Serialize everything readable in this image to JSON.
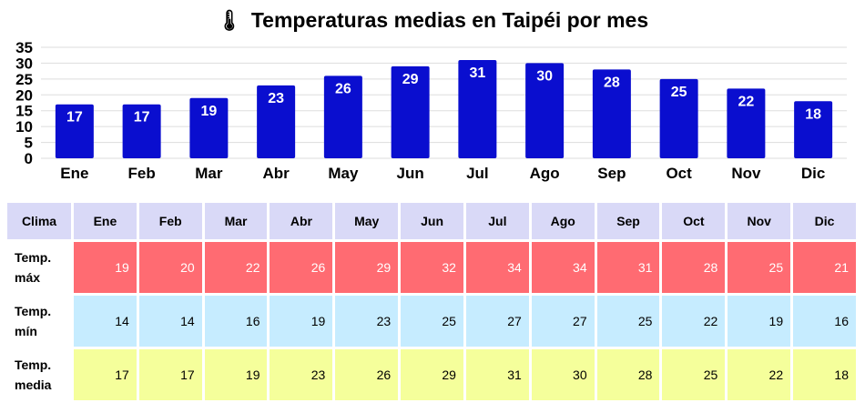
{
  "title_icon": "thermometer-icon",
  "title": "Temperaturas medias en Taipéi por mes",
  "colors": {
    "bar": "#0a0ecf",
    "grid": "#dddddd",
    "header": "#d9d9f7",
    "max_row": "#ff6b72",
    "min_row": "#c6ecff",
    "mean_row": "#f5ff9b"
  },
  "chart_data": {
    "type": "bar",
    "title": "Temperaturas medias en Taipéi por mes",
    "categories": [
      "Ene",
      "Feb",
      "Mar",
      "Abr",
      "May",
      "Jun",
      "Jul",
      "Ago",
      "Sep",
      "Oct",
      "Nov",
      "Dic"
    ],
    "values": [
      17,
      17,
      19,
      23,
      26,
      29,
      31,
      30,
      28,
      25,
      22,
      18
    ],
    "ylim": [
      0,
      35
    ],
    "yticks": [
      0,
      5,
      10,
      15,
      20,
      25,
      30,
      35
    ],
    "grid": true,
    "data_labels": true
  },
  "table": {
    "corner": "Clima",
    "months": [
      "Ene",
      "Feb",
      "Mar",
      "Abr",
      "May",
      "Jun",
      "Jul",
      "Ago",
      "Sep",
      "Oct",
      "Nov",
      "Dic"
    ],
    "rows": [
      {
        "label_1": "Temp.",
        "label_2": "máx",
        "values": [
          "19",
          "20",
          "22",
          "26",
          "29",
          "32",
          "34",
          "34",
          "31",
          "28",
          "25",
          "21"
        ]
      },
      {
        "label_1": "Temp.",
        "label_2": "mín",
        "values": [
          "14",
          "14",
          "16",
          "19",
          "23",
          "25",
          "27",
          "27",
          "25",
          "22",
          "19",
          "16"
        ]
      },
      {
        "label_1": "Temp.",
        "label_2": "media",
        "values": [
          "17",
          "17",
          "19",
          "23",
          "26",
          "29",
          "31",
          "30",
          "28",
          "25",
          "22",
          "18"
        ]
      }
    ]
  }
}
